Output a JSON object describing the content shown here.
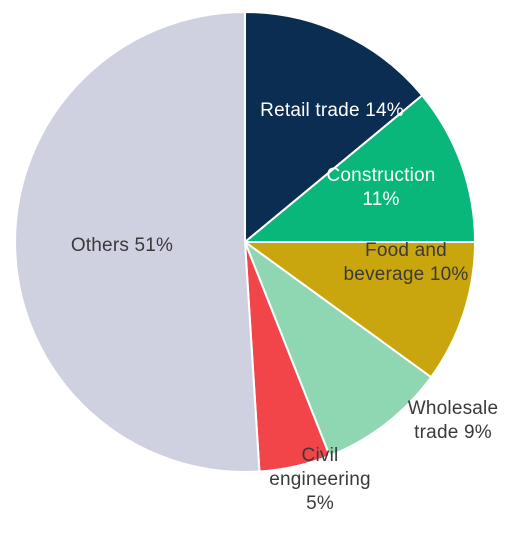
{
  "chart_data": {
    "type": "pie",
    "title": "",
    "start_angle_deg": 0,
    "direction": "clockwise",
    "slices": [
      {
        "name": "Retail trade",
        "value": 14,
        "label_lines": [
          "Retail trade 14%"
        ],
        "color": "#0c2d52",
        "label_color": "#ffffff"
      },
      {
        "name": "Construction",
        "value": 11,
        "label_lines": [
          "Construction",
          "11%"
        ],
        "color": "#0ab77b",
        "label_color": "#ffffff"
      },
      {
        "name": "Food and beverage",
        "value": 10,
        "label_lines": [
          "Food and",
          "beverage 10%"
        ],
        "color": "#c9a60e",
        "label_color": "#3a3a3a"
      },
      {
        "name": "Wholesale trade",
        "value": 9,
        "label_lines": [
          "Wholesale",
          "trade 9%"
        ],
        "color": "#8fd6b3",
        "label_color": "#3a3a3a"
      },
      {
        "name": "Civil engineering",
        "value": 5,
        "label_lines": [
          "Civil",
          "engineering",
          "5%"
        ],
        "color": "#f2454a",
        "label_color": "#3a3a3a"
      },
      {
        "name": "Others",
        "value": 51,
        "label_lines": [
          "Others 51%"
        ],
        "color": "#cfd1e1",
        "label_color": "#3a3a3a"
      }
    ]
  }
}
